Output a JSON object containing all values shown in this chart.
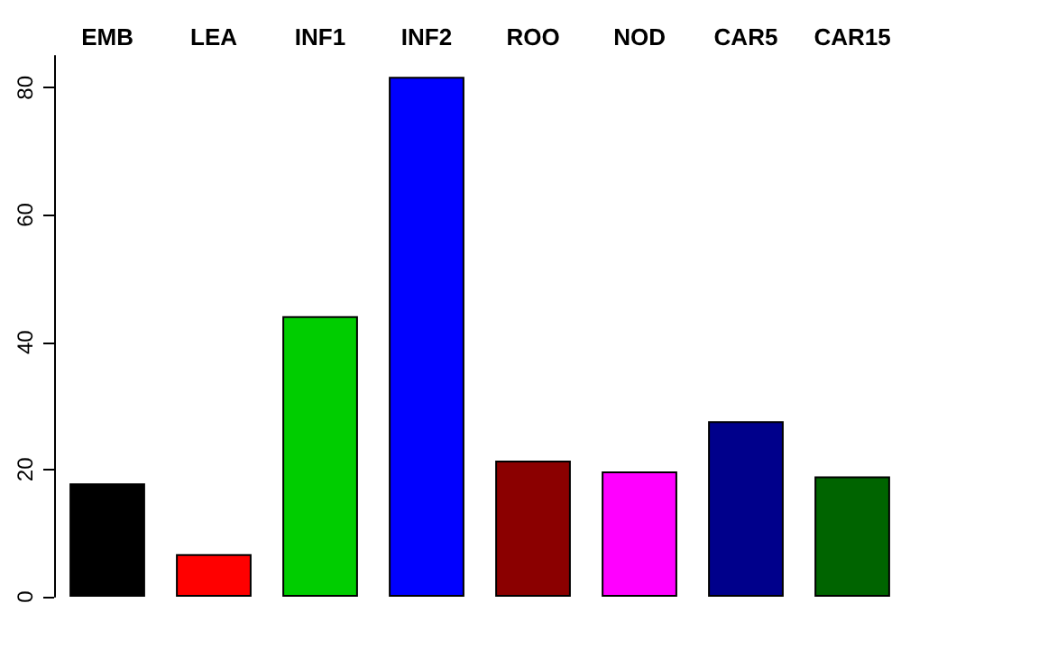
{
  "chart_data": {
    "type": "bar",
    "categories": [
      "EMB",
      "LEA",
      "INF1",
      "INF2",
      "ROO",
      "NOD",
      "CAR5",
      "CAR15"
    ],
    "values": [
      17.8,
      6.7,
      44.1,
      81.7,
      21.4,
      19.7,
      27.6,
      18.9
    ],
    "colors": [
      "#000000",
      "#ff0000",
      "#00cd00",
      "#0000ff",
      "#8b0000",
      "#ff00ff",
      "#00008b",
      "#006400"
    ],
    "ylim": [
      0,
      85
    ],
    "yticks": [
      0,
      20,
      40,
      60,
      80
    ]
  }
}
